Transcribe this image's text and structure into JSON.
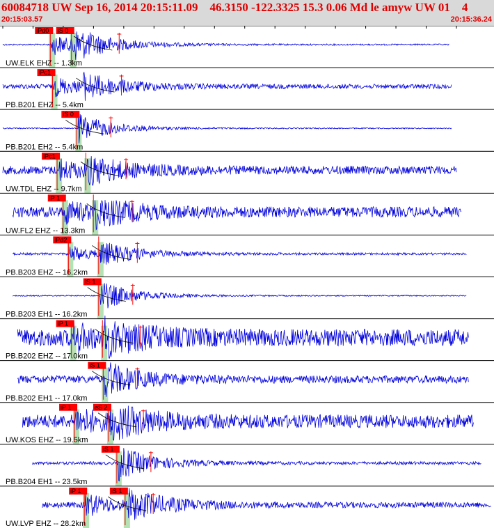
{
  "header": {
    "title": "60084718 UW Sep 16, 2014 20:15:11.09    46.3150 -122.3325 15.3 0.06 Md le amyw UW 01    4",
    "start_time": "20:15:03.57",
    "end_time": "20:15:36.24"
  },
  "colors": {
    "header_bg": "#d9d9d9",
    "header_text": "#e00000",
    "trace": "#0000dd",
    "pick_box": "#ff0000",
    "pick_window": "#a8dca8",
    "moveout_curve": "#000000",
    "ticks": "#000000"
  },
  "traces": [
    {
      "label": "UW.ELK EHZ -- 1.3km",
      "noise": 0.04,
      "p": {
        "t": 3.05,
        "label": "iPd0"
      },
      "s": {
        "t": 4.45,
        "label": "iS 0"
      },
      "amp": 0.75,
      "end": 0.915,
      "start": 0.0
    },
    {
      "label": "PB.B201 EHZ -- 5.4km",
      "noise": 0.12,
      "p": {
        "t": 3.2,
        "label": "iPc1"
      },
      "s": null,
      "amp": 0.6,
      "end": 0.92,
      "start": 0.0
    },
    {
      "label": "PB.B201 EH2 -- 5.4km",
      "noise": 0.03,
      "p": null,
      "s": {
        "t": 4.8,
        "label": "iS 0"
      },
      "amp": 0.45,
      "end": 0.92,
      "start": 0.0
    },
    {
      "label": "UW.TDL EHZ -- 9.7km",
      "noise": 0.22,
      "p": {
        "t": 3.5,
        "label": "iPc1"
      },
      "s": {
        "t": 5.4,
        "label": ""
      },
      "amp": 0.6,
      "end": 0.93,
      "start": 0.0
    },
    {
      "label": "UW.FL2 EHZ -- 13.3km",
      "noise": 0.28,
      "p": {
        "t": 3.9,
        "label": "iP 1"
      },
      "s": {
        "t": 5.9,
        "label": ""
      },
      "amp": 0.6,
      "end": 0.94,
      "start": 0.02
    },
    {
      "label": "PB.B203 EHZ -- 16.2km",
      "noise": 0.06,
      "p": {
        "t": 4.25,
        "label": "iPd2"
      },
      "s": {
        "t": 6.25,
        "label": ""
      },
      "amp": 0.55,
      "end": 0.95,
      "start": 0.02
    },
    {
      "label": "PB.B203 EH1 -- 16.2km",
      "noise": 0.03,
      "p": null,
      "s": {
        "t": 6.25,
        "label": "iS 1"
      },
      "amp": 0.45,
      "end": 0.95,
      "start": 0.02
    },
    {
      "label": "PB.B202 EHZ -- 17.0km",
      "noise": 0.45,
      "p": {
        "t": 4.45,
        "label": "iP 1"
      },
      "s": {
        "t": 6.5,
        "label": ""
      },
      "amp": 0.65,
      "end": 0.955,
      "start": 0.03
    },
    {
      "label": "PB.B202 EH1 -- 17.0km",
      "noise": 0.2,
      "p": null,
      "s": {
        "t": 6.55,
        "label": "iS 1"
      },
      "amp": 0.5,
      "end": 0.955,
      "start": 0.03
    },
    {
      "label": "UW.KOS EHZ -- 19.5km",
      "noise": 0.35,
      "p": {
        "t": 4.65,
        "label": "iP 1"
      },
      "s": {
        "t": 6.9,
        "label": "eS 2"
      },
      "amp": 0.7,
      "end": 0.965,
      "start": 0.04
    },
    {
      "label": "PB.B204 EH1 -- 23.5km",
      "noise": 0.08,
      "p": null,
      "s": {
        "t": 7.45,
        "label": "iS 1"
      },
      "amp": 0.5,
      "end": 0.98,
      "start": 0.06
    },
    {
      "label": "UW.LVP EHZ -- 28.2km",
      "noise": 0.15,
      "p": {
        "t": 5.3,
        "label": "iP 1"
      },
      "s": {
        "t": 8.0,
        "label": "iS 1"
      },
      "amp": 0.75,
      "end": 1.0,
      "start": 0.08
    }
  ]
}
